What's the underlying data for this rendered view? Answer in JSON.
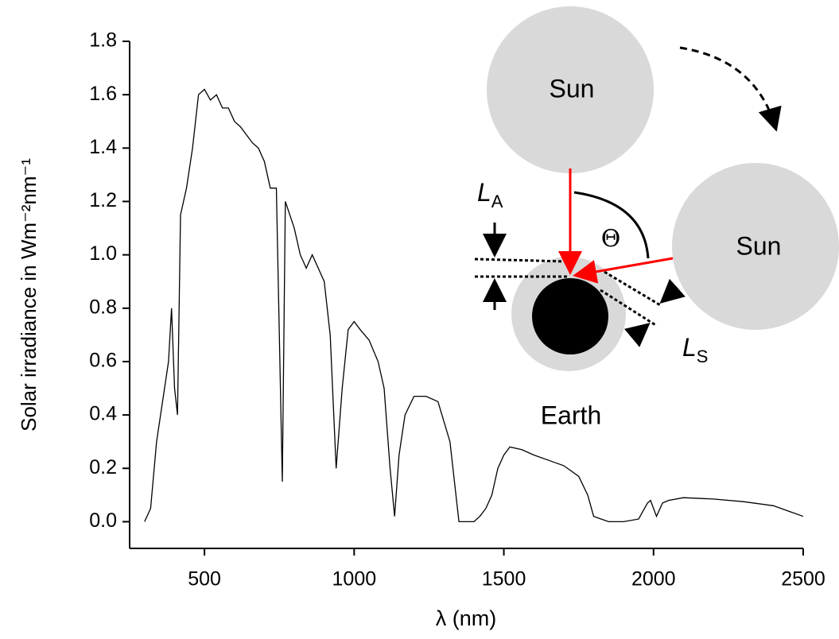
{
  "chart_data": {
    "type": "line",
    "y_label": "Solar irradiance in Wm⁻²nm⁻¹",
    "x_label": "λ (nm)",
    "xlim": [
      250,
      2500
    ],
    "ylim": [
      -0.1,
      1.8
    ],
    "xticks": [
      500,
      1000,
      1500,
      2000,
      2500
    ],
    "yticks": [
      {
        "value": 0,
        "label": "0.0"
      },
      0.2,
      0.4,
      0.6,
      0.8,
      {
        "value": 1,
        "label": "1.0"
      },
      1.2,
      1.4,
      1.6,
      1.8
    ],
    "color": "#000000",
    "x": [
      300,
      320,
      340,
      360,
      380,
      390,
      400,
      410,
      420,
      440,
      460,
      480,
      500,
      520,
      540,
      560,
      580,
      600,
      620,
      640,
      660,
      680,
      700,
      720,
      740,
      760,
      770,
      800,
      820,
      840,
      860,
      880,
      900,
      920,
      940,
      960,
      980,
      1000,
      1020,
      1050,
      1080,
      1100,
      1120,
      1135,
      1150,
      1170,
      1200,
      1240,
      1280,
      1320,
      1350,
      1400,
      1420,
      1440,
      1460,
      1480,
      1500,
      1520,
      1560,
      1600,
      1650,
      1700,
      1750,
      1780,
      1800,
      1850,
      1900,
      1950,
      1980,
      1990,
      2010,
      2030,
      2050,
      2100,
      2200,
      2300,
      2400,
      2450,
      2500
    ],
    "values": [
      0.0,
      0.05,
      0.3,
      0.45,
      0.6,
      0.8,
      0.5,
      0.4,
      1.15,
      1.25,
      1.4,
      1.6,
      1.62,
      1.58,
      1.6,
      1.55,
      1.55,
      1.5,
      1.48,
      1.45,
      1.42,
      1.4,
      1.35,
      1.25,
      1.25,
      0.15,
      1.2,
      1.1,
      1.0,
      0.95,
      1.0,
      0.95,
      0.9,
      0.7,
      0.2,
      0.5,
      0.72,
      0.75,
      0.72,
      0.68,
      0.6,
      0.5,
      0.2,
      0.02,
      0.25,
      0.4,
      0.47,
      0.47,
      0.45,
      0.3,
      0.0,
      0.0,
      0.02,
      0.05,
      0.1,
      0.2,
      0.25,
      0.28,
      0.27,
      0.25,
      0.23,
      0.21,
      0.17,
      0.1,
      0.02,
      0.0,
      0.0,
      0.01,
      0.07,
      0.08,
      0.02,
      0.07,
      0.08,
      0.09,
      0.085,
      0.075,
      0.06,
      0.04,
      0.02
    ],
    "annotations": [
      {
        "text": "Sun"
      },
      {
        "text": "Sun"
      },
      {
        "text": "Earth"
      },
      {
        "text": "Θ"
      },
      {
        "text": "L",
        "sub": "A"
      },
      {
        "text": "L",
        "sub": "S"
      }
    ]
  }
}
